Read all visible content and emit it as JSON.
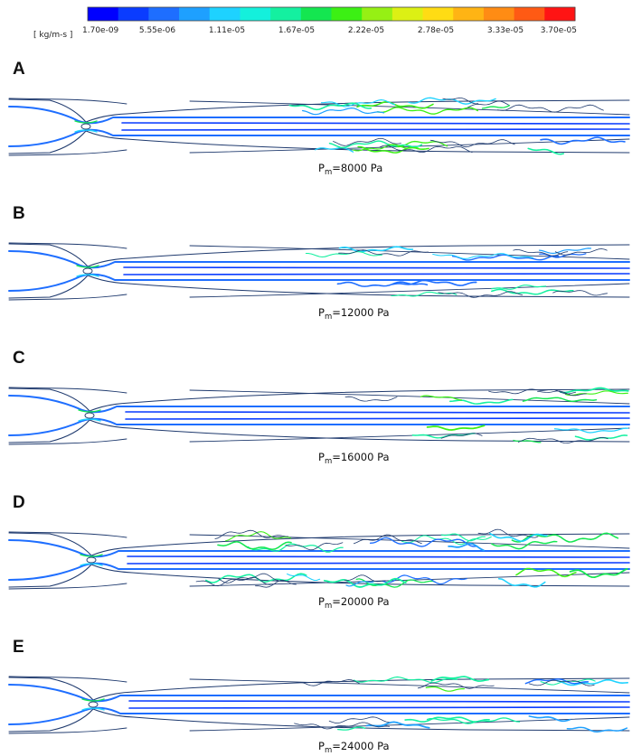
{
  "colorbar": {
    "unit_label": "[ kg/m-s ]",
    "ticks": [
      "1.70e-09",
      "5.55e-06",
      "1.11e-05",
      "1.67e-05",
      "2.22e-05",
      "2.78e-05",
      "3.33e-05",
      "3.70e-05"
    ],
    "colors": [
      "#0000ff",
      "#0a3cff",
      "#1e6eff",
      "#1ea0ff",
      "#1ed2ff",
      "#14f0dc",
      "#14f0a0",
      "#14e650",
      "#3cf014",
      "#96f014",
      "#dcf014",
      "#ffdc14",
      "#ffb414",
      "#ff8c14",
      "#ff5a14",
      "#ff1414"
    ]
  },
  "panels": [
    {
      "letter": "A",
      "caption_main": "P",
      "caption_sub": "m",
      "caption_rest": "=8000  Pa",
      "throat": 0.16,
      "turbulence": 0.55
    },
    {
      "letter": "B",
      "caption_main": "P",
      "caption_sub": "m",
      "caption_rest": "=12000  Pa",
      "throat": 0.13,
      "turbulence": 0.35
    },
    {
      "letter": "C",
      "caption_main": "P",
      "caption_sub": "m",
      "caption_rest": "=16000  Pa",
      "throat": 0.13,
      "turbulence": 0.25
    },
    {
      "letter": "D",
      "caption_main": "P",
      "caption_sub": "m",
      "caption_rest": "=20000  Pa",
      "throat": 0.13,
      "turbulence": 0.9
    },
    {
      "letter": "E",
      "caption_main": "P",
      "caption_sub": "m",
      "caption_rest": "=24000  Pa",
      "throat": 0.13,
      "turbulence": 0.4
    }
  ]
}
